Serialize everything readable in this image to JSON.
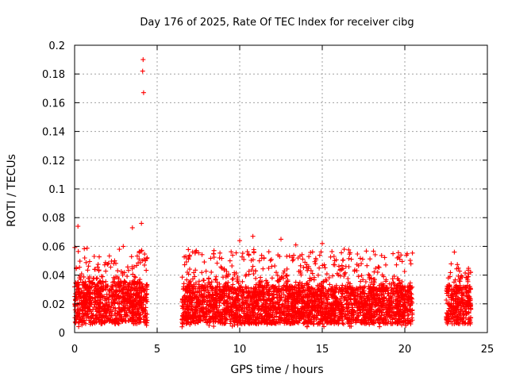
{
  "chart_data": {
    "type": "scatter",
    "title": "Day 176 of 2025, Rate Of TEC Index for receiver cibg",
    "xlabel": "GPS time / hours",
    "ylabel": "ROTI / TECUs",
    "xlim": [
      0,
      25
    ],
    "ylim": [
      0,
      0.2
    ],
    "xticks": [
      0,
      5,
      10,
      15,
      20,
      25
    ],
    "xtick_labels": [
      "0",
      "5",
      "10",
      "15",
      "20",
      "25"
    ],
    "yticks": [
      0,
      0.02,
      0.04,
      0.06,
      0.08,
      0.1,
      0.12,
      0.14,
      0.16,
      0.18,
      0.2
    ],
    "ytick_labels": [
      "0",
      "0.02",
      "0.04",
      "0.06",
      "0.08",
      "0.1",
      "0.12",
      "0.14",
      "0.16",
      "0.18",
      "0.2"
    ],
    "grid": true,
    "marker": "+",
    "color": "#ff0000",
    "series": [
      {
        "name": "ROTI",
        "segments": [
          {
            "x_start": 0.0,
            "x_end": 4.4,
            "typical_low": 0.006,
            "typical_high": 0.035,
            "upper_envelope": 0.06
          },
          {
            "x_start": 6.5,
            "x_end": 20.5,
            "typical_low": 0.006,
            "typical_high": 0.032,
            "upper_envelope": 0.058
          },
          {
            "x_start": 22.5,
            "x_end": 24.0,
            "typical_low": 0.006,
            "typical_high": 0.032,
            "upper_envelope": 0.05
          }
        ],
        "notable_points": [
          {
            "x": 4.15,
            "y": 0.19
          },
          {
            "x": 4.12,
            "y": 0.182
          },
          {
            "x": 4.18,
            "y": 0.167
          },
          {
            "x": 4.05,
            "y": 0.076
          },
          {
            "x": 0.2,
            "y": 0.074
          },
          {
            "x": 3.5,
            "y": 0.073
          },
          {
            "x": 10.8,
            "y": 0.067
          },
          {
            "x": 12.5,
            "y": 0.065
          },
          {
            "x": 10.0,
            "y": 0.064
          },
          {
            "x": 15.0,
            "y": 0.062
          },
          {
            "x": 13.4,
            "y": 0.061
          },
          {
            "x": 23.0,
            "y": 0.056
          },
          {
            "x": 19.7,
            "y": 0.051
          },
          {
            "x": 4.3,
            "y": 0.05
          }
        ]
      }
    ]
  }
}
